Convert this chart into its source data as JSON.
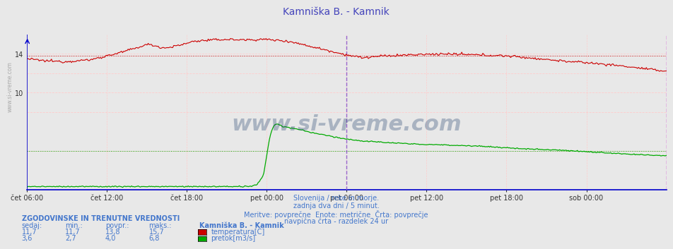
{
  "title": "Kamniška B. - Kamnik",
  "title_color": "#4444bb",
  "bg_color": "#e8e8e8",
  "plot_bg_color": "#e8e8e8",
  "x_labels": [
    "čet 06:00",
    "čet 12:00",
    "čet 18:00",
    "pet 00:00",
    "pet 06:00",
    "pet 12:00",
    "pet 18:00",
    "sob 00:00"
  ],
  "x_ticks_norm": [
    0.0,
    0.25,
    0.5,
    0.75,
    1.0,
    1.25,
    1.5,
    1.75
  ],
  "ylim": [
    0,
    16
  ],
  "temp_avg": 13.8,
  "flow_avg": 4.0,
  "temp_color": "#cc0000",
  "flow_color": "#00aa00",
  "grid_h_color": "#ffcccc",
  "grid_v_color": "#ffcccc",
  "vline_24h_color": "#9966cc",
  "vline_end_color": "#cc00cc",
  "border_color": "#0000cc",
  "watermark_text": "www.si-vreme.com",
  "watermark_color": "#1a3a6a",
  "watermark_alpha": 0.3,
  "subtitle_lines": [
    "Slovenija / reke in morje.",
    "zadnja dva dni / 5 minut.",
    "Meritve: povprečne  Enote: metrične  Črta: povprečje",
    "navpična črta - razdelek 24 ur"
  ],
  "subtitle_color": "#4477cc",
  "legend_header": "ZGODOVINSKE IN TRENUTNE VREDNOSTI",
  "legend_cols": [
    "sedaj:",
    "min.:",
    "povpr.:",
    "maks.:"
  ],
  "legend_station": "Kamniška B. - Kamnik",
  "legend_temp_vals": [
    "11,7",
    "11,7",
    "13,8",
    "15,7"
  ],
  "legend_flow_vals": [
    "3,6",
    "2,7",
    "4,0",
    "6,8"
  ],
  "legend_temp_label": "temperatura[C]",
  "legend_flow_label": "pretok[m3/s]",
  "legend_color": "#4477cc",
  "sidebar_text": "www.si-vreme.com",
  "sidebar_color": "#aaaaaa",
  "n_points": 576
}
